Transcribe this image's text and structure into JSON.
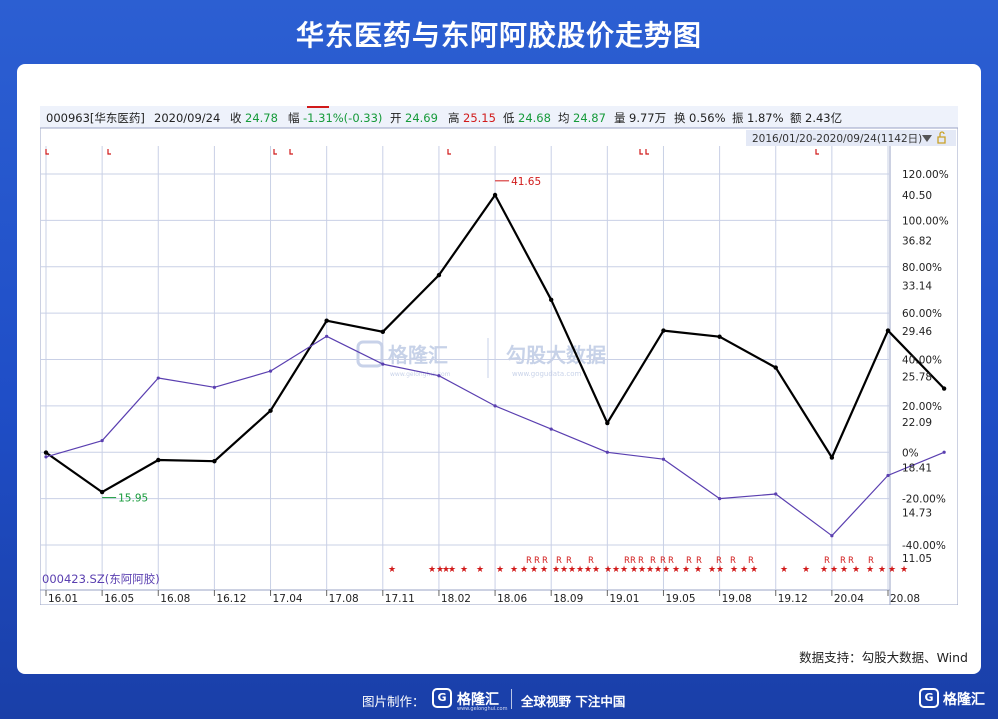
{
  "title": "华东医药与东阿阿胶股价走势图",
  "source_note": "数据支持：勾股大数据、Wind",
  "footer": {
    "made_by": "图片制作：",
    "logo_glyph": "G",
    "brand": "格隆汇",
    "brand_sub": "www.gelonghui.com",
    "slogan": "全球视野 下注中国",
    "logo_glyph_right": "G",
    "brand_right": "格隆汇"
  },
  "watermark": {
    "left": "格隆汇",
    "left_sub": "www.gelonghui.com",
    "right": "勾股大数据",
    "right_sub": "www.gogudata.com"
  },
  "quote_bar": {
    "code_name": "000963[华东医药]",
    "date": "2020/09/24",
    "close_label": "收",
    "close": "24.78",
    "change_label": "幅",
    "change": "-1.31%(-0.33)",
    "open_label": "开",
    "open": "24.69",
    "high_label": "高",
    "high": "25.15",
    "low_label": "低",
    "low": "24.68",
    "avg_label": "均",
    "avg": "24.87",
    "volume_label": "量",
    "volume": "9.77万",
    "turnover_label": "换",
    "turnover": "0.56%",
    "amplitude_label": "振",
    "amplitude": "1.87%",
    "amount_label": "额",
    "amount": "2.43亿"
  },
  "range_text": "2016/01/20-2020/09/24(1142日)",
  "colors": {
    "main_series": "#000000",
    "compare_series": "#5a3fb0",
    "positive": "#d11a1a",
    "negative": "#169a3a",
    "grid": "#c9d0e6",
    "marker": "#d11a1a",
    "background_blue": "#2c5fd2"
  },
  "chart_data": {
    "type": "line",
    "series": [
      {
        "name": "000963[华东医药]",
        "x": [
          "16.01",
          "16.05",
          "16.08",
          "16.12",
          "17.04",
          "17.08",
          "17.11",
          "18.02",
          "18.06",
          "18.09",
          "19.01",
          "19.05",
          "19.08",
          "19.12",
          "20.04",
          "20.08",
          "20.09"
        ],
        "values": [
          19.6,
          16.4,
          19.0,
          18.9,
          23.0,
          30.3,
          29.4,
          34.0,
          40.5,
          32.0,
          22.0,
          29.5,
          29.0,
          26.5,
          19.2,
          29.5,
          24.8
        ]
      },
      {
        "name": "000423.SZ(东阿阿胶)",
        "x": [
          "16.01",
          "16.05",
          "16.08",
          "16.12",
          "17.04",
          "17.08",
          "17.11",
          "18.02",
          "18.06",
          "18.09",
          "19.01",
          "19.05",
          "19.08",
          "19.12",
          "20.04",
          "20.08",
          "20.09"
        ],
        "values": [
          -2,
          5,
          32,
          28,
          35,
          50,
          38,
          33,
          20,
          10,
          0,
          -3,
          -20,
          -18,
          -36,
          -10,
          0
        ]
      }
    ],
    "annotations": [
      {
        "label": "41.65",
        "x": "18.06",
        "value": 41.65,
        "kind": "high"
      },
      {
        "label": "15.95",
        "x": "16.05",
        "value": 15.95,
        "kind": "low"
      }
    ],
    "left_axis_ticks": [
      "120.00%",
      "100.00%",
      "80.00%",
      "60.00%",
      "40.00%",
      "20.00%",
      "0%",
      "-20.00%",
      "-40.00%"
    ],
    "left_axis_values": [
      120,
      100,
      80,
      60,
      40,
      20,
      0,
      -20,
      -40
    ],
    "right_axis_ticks": [
      "40.50",
      "36.82",
      "33.14",
      "29.46",
      "25.78",
      "22.09",
      "18.41",
      "14.73",
      "11.05"
    ],
    "right_axis_values": [
      40.5,
      36.82,
      33.14,
      29.46,
      25.78,
      22.09,
      18.41,
      14.73,
      11.05
    ],
    "x_ticks": [
      "16.01",
      "16.05",
      "16.08",
      "16.12",
      "17.04",
      "17.08",
      "17.11",
      "18.02",
      "18.06",
      "18.09",
      "19.01",
      "19.05",
      "19.08",
      "19.12",
      "20.04",
      "20.08"
    ],
    "ylim_percent": [
      -40,
      120
    ],
    "ylim_price": [
      11.05,
      40.5
    ],
    "grid": true,
    "legend_label": "000423.SZ(东阿阿胶)",
    "legend_position": "bottom-left"
  }
}
